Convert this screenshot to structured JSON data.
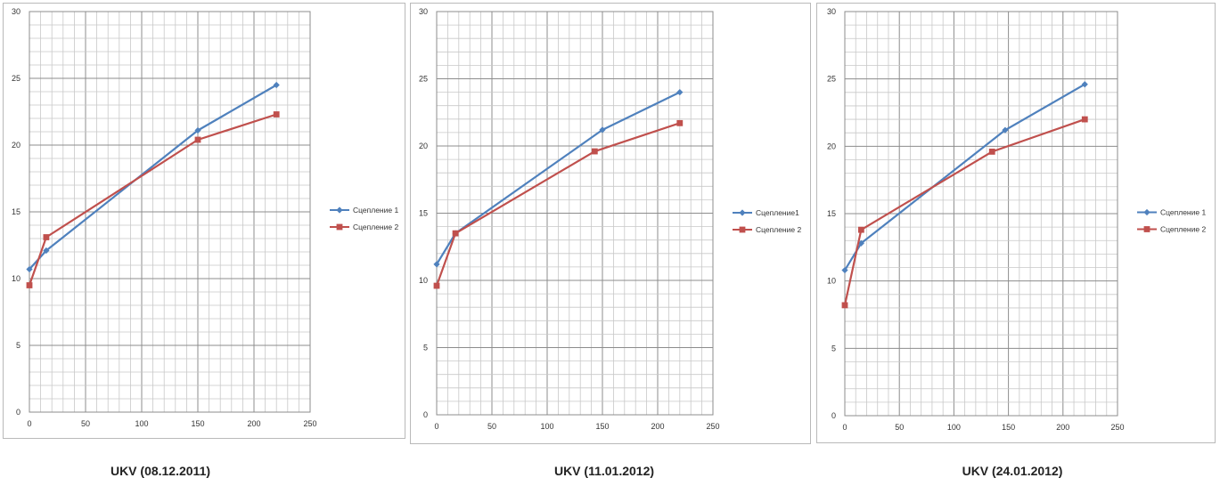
{
  "chart_data": [
    {
      "type": "line",
      "title": "",
      "caption": "UKV (08.12.2011)",
      "xlim": [
        0,
        250
      ],
      "ylim": [
        0,
        30
      ],
      "xticks": [
        "0",
        "50",
        "100",
        "150",
        "200",
        "250"
      ],
      "yticks": [
        "0",
        "5",
        "10",
        "15",
        "20",
        "25",
        "30"
      ],
      "grid": true,
      "legend_position": "right",
      "series": [
        {
          "name": "Сцепление 1",
          "color": "#4F81BD",
          "marker": "diamond",
          "points": [
            [
              0,
              10.7
            ],
            [
              15,
              12.1
            ],
            [
              150,
              21.1
            ],
            [
              220,
              24.5
            ]
          ]
        },
        {
          "name": "Сцепление 2",
          "color": "#C0504D",
          "marker": "square",
          "points": [
            [
              0,
              9.5
            ],
            [
              15,
              13.1
            ],
            [
              150,
              20.4
            ],
            [
              220,
              22.3
            ]
          ]
        }
      ]
    },
    {
      "type": "line",
      "title": "",
      "caption": "UKV (11.01.2012)",
      "xlim": [
        0,
        250
      ],
      "ylim": [
        0,
        30
      ],
      "xticks": [
        "0",
        "50",
        "100",
        "150",
        "200",
        "250"
      ],
      "yticks": [
        "0",
        "5",
        "10",
        "15",
        "20",
        "25",
        "30"
      ],
      "grid": true,
      "legend_position": "right",
      "series": [
        {
          "name": "Сцепление1",
          "color": "#4F81BD",
          "marker": "diamond",
          "points": [
            [
              0,
              11.2
            ],
            [
              17,
              13.5
            ],
            [
              150,
              21.2
            ],
            [
              220,
              24.0
            ]
          ]
        },
        {
          "name": "Сцепление 2",
          "color": "#C0504D",
          "marker": "square",
          "points": [
            [
              0,
              9.6
            ],
            [
              17,
              13.5
            ],
            [
              143,
              19.6
            ],
            [
              220,
              21.7
            ]
          ]
        }
      ]
    },
    {
      "type": "line",
      "title": "",
      "caption": "UKV (24.01.2012)",
      "xlim": [
        0,
        250
      ],
      "ylim": [
        0,
        30
      ],
      "xticks": [
        "0",
        "50",
        "100",
        "150",
        "200",
        "250"
      ],
      "yticks": [
        "0",
        "5",
        "10",
        "15",
        "20",
        "25",
        "30"
      ],
      "grid": true,
      "legend_position": "right",
      "series": [
        {
          "name": "Сцепление 1",
          "color": "#4F81BD",
          "marker": "diamond",
          "points": [
            [
              0,
              10.8
            ],
            [
              15,
              12.8
            ],
            [
              147,
              21.2
            ],
            [
              220,
              24.6
            ]
          ]
        },
        {
          "name": "Сцепление 2",
          "color": "#C0504D",
          "marker": "square",
          "points": [
            [
              0,
              8.2
            ],
            [
              15,
              13.8
            ],
            [
              135,
              19.6
            ],
            [
              220,
              22.0
            ]
          ]
        }
      ]
    }
  ]
}
